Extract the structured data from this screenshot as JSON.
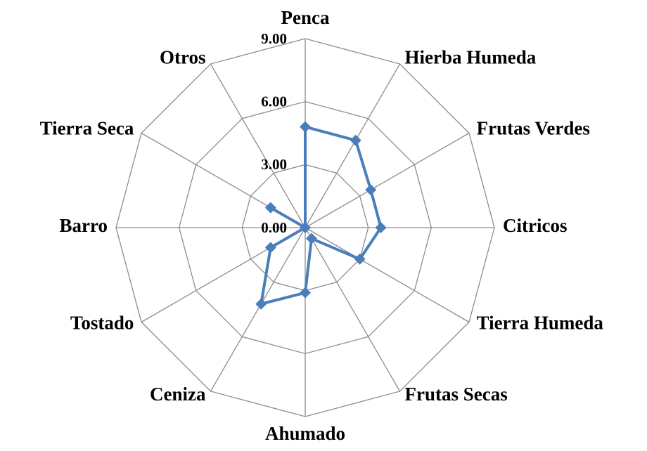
{
  "chart_data": {
    "type": "radar",
    "categories": [
      "Penca",
      "Hierba Humeda",
      "Frutas Verdes",
      "Citricos",
      "Tierra Humeda",
      "Frutas Secas",
      "Ahumado",
      "Ceniza",
      "Tostado",
      "Barro",
      "Tierra Seca",
      "Otros"
    ],
    "series": [
      {
        "name": null,
        "color": "#4a7ebb",
        "values": [
          4.8,
          4.8,
          3.6,
          3.6,
          3.0,
          0.6,
          3.1,
          4.2,
          1.9,
          0,
          1.9,
          0
        ]
      }
    ],
    "ylim": [
      0,
      9
    ],
    "yticks": [
      {
        "value": 0,
        "label": "0.00"
      },
      {
        "value": 3,
        "label": "3.00"
      },
      {
        "value": 6,
        "label": "6.00"
      },
      {
        "value": 9,
        "label": "9.00"
      }
    ],
    "grid": true
  }
}
